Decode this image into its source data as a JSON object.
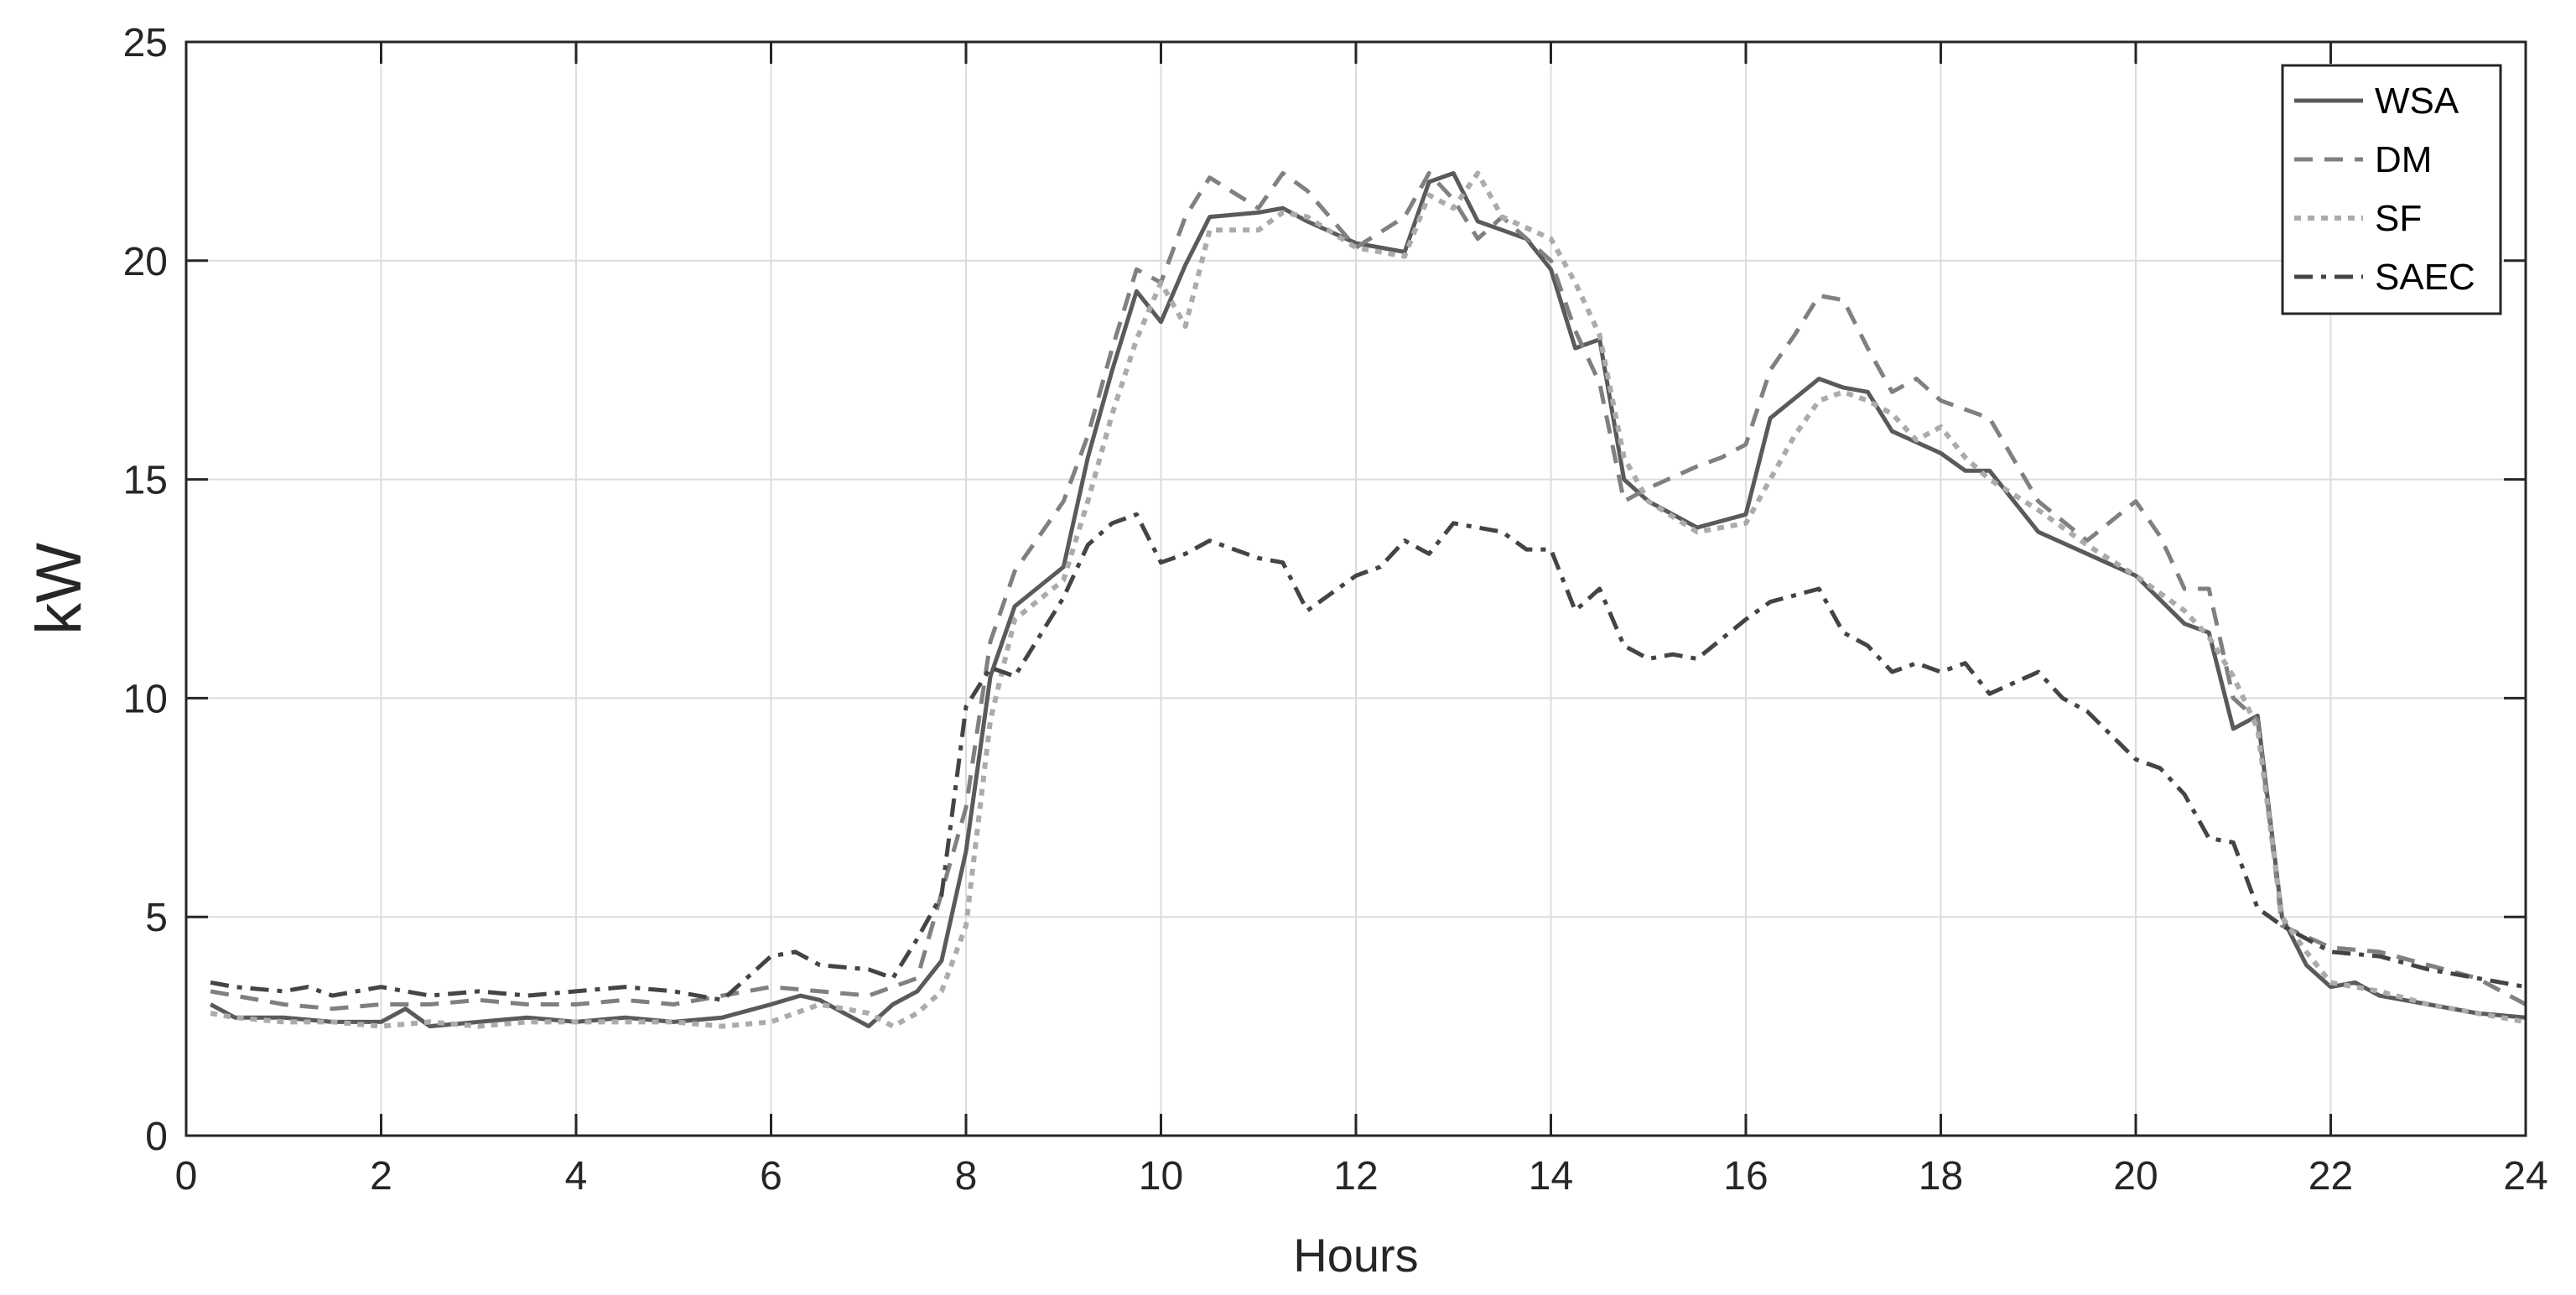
{
  "chart_data": {
    "type": "line",
    "title": "",
    "xlabel": "Hours",
    "ylabel": "kW",
    "xlim": [
      0,
      24
    ],
    "ylim": [
      0,
      25
    ],
    "x_ticks": [
      "0",
      "2",
      "4",
      "6",
      "8",
      "10",
      "12",
      "14",
      "16",
      "18",
      "20",
      "22",
      "24"
    ],
    "y_ticks": [
      "0",
      "5",
      "10",
      "15",
      "20",
      "25"
    ],
    "grid": true,
    "legend_position": "top-right",
    "series": [
      {
        "name": "WSA",
        "color": "#5a5a5a",
        "dash": "solid",
        "points": [
          [
            0.25,
            3.0
          ],
          [
            0.5,
            2.7
          ],
          [
            1,
            2.7
          ],
          [
            1.5,
            2.6
          ],
          [
            2,
            2.6
          ],
          [
            2.25,
            2.9
          ],
          [
            2.5,
            2.5
          ],
          [
            3,
            2.6
          ],
          [
            3.5,
            2.7
          ],
          [
            4,
            2.6
          ],
          [
            4.5,
            2.7
          ],
          [
            5,
            2.6
          ],
          [
            5.5,
            2.7
          ],
          [
            6,
            3.0
          ],
          [
            6.3,
            3.2
          ],
          [
            6.5,
            3.1
          ],
          [
            7,
            2.5
          ],
          [
            7.25,
            3.0
          ],
          [
            7.5,
            3.3
          ],
          [
            7.75,
            4.0
          ],
          [
            8,
            6.5
          ],
          [
            8.25,
            10.5
          ],
          [
            8.5,
            12.1
          ],
          [
            9,
            13.0
          ],
          [
            9.25,
            15.5
          ],
          [
            9.5,
            17.5
          ],
          [
            9.75,
            19.3
          ],
          [
            10,
            18.6
          ],
          [
            10.25,
            19.9
          ],
          [
            10.5,
            21.0
          ],
          [
            11,
            21.1
          ],
          [
            11.25,
            21.2
          ],
          [
            11.5,
            20.9
          ],
          [
            12,
            20.4
          ],
          [
            12.5,
            20.2
          ],
          [
            12.75,
            21.8
          ],
          [
            13,
            22.0
          ],
          [
            13.25,
            20.9
          ],
          [
            13.75,
            20.5
          ],
          [
            14,
            19.8
          ],
          [
            14.25,
            18.0
          ],
          [
            14.5,
            18.2
          ],
          [
            14.75,
            15.0
          ],
          [
            15,
            14.5
          ],
          [
            15.5,
            13.9
          ],
          [
            16,
            14.2
          ],
          [
            16.25,
            16.4
          ],
          [
            16.75,
            17.3
          ],
          [
            17,
            17.1
          ],
          [
            17.25,
            17.0
          ],
          [
            17.5,
            16.1
          ],
          [
            18,
            15.6
          ],
          [
            18.25,
            15.2
          ],
          [
            18.5,
            15.2
          ],
          [
            19,
            13.8
          ],
          [
            19.5,
            13.3
          ],
          [
            20,
            12.8
          ],
          [
            20.5,
            11.7
          ],
          [
            20.75,
            11.5
          ],
          [
            21,
            9.3
          ],
          [
            21.25,
            9.6
          ],
          [
            21.5,
            5.0
          ],
          [
            21.75,
            3.9
          ],
          [
            22,
            3.4
          ],
          [
            22.25,
            3.5
          ],
          [
            22.5,
            3.2
          ],
          [
            23,
            3.0
          ],
          [
            23.5,
            2.8
          ],
          [
            24,
            2.7
          ]
        ]
      },
      {
        "name": "DM",
        "color": "#808080",
        "dash": "dashed",
        "points": [
          [
            0.25,
            3.3
          ],
          [
            0.5,
            3.2
          ],
          [
            1,
            3.0
          ],
          [
            1.5,
            2.9
          ],
          [
            2,
            3.0
          ],
          [
            2.5,
            3.0
          ],
          [
            3,
            3.1
          ],
          [
            3.5,
            3.0
          ],
          [
            4,
            3.0
          ],
          [
            4.5,
            3.1
          ],
          [
            5,
            3.0
          ],
          [
            5.5,
            3.2
          ],
          [
            6,
            3.4
          ],
          [
            6.5,
            3.3
          ],
          [
            7,
            3.2
          ],
          [
            7.5,
            3.6
          ],
          [
            8,
            7.5
          ],
          [
            8.25,
            11.3
          ],
          [
            8.5,
            12.9
          ],
          [
            9,
            14.5
          ],
          [
            9.25,
            16.0
          ],
          [
            9.5,
            18.0
          ],
          [
            9.75,
            19.8
          ],
          [
            10,
            19.5
          ],
          [
            10.25,
            21.0
          ],
          [
            10.5,
            21.9
          ],
          [
            11,
            21.2
          ],
          [
            11.25,
            22.0
          ],
          [
            11.5,
            21.6
          ],
          [
            12,
            20.3
          ],
          [
            12.5,
            21.0
          ],
          [
            12.75,
            22.0
          ],
          [
            13,
            21.4
          ],
          [
            13.25,
            20.5
          ],
          [
            13.5,
            21.0
          ],
          [
            14,
            20.0
          ],
          [
            14.25,
            18.4
          ],
          [
            14.5,
            17.2
          ],
          [
            14.75,
            14.5
          ],
          [
            15,
            14.8
          ],
          [
            15.5,
            15.3
          ],
          [
            15.75,
            15.5
          ],
          [
            16,
            15.8
          ],
          [
            16.25,
            17.5
          ],
          [
            16.5,
            18.3
          ],
          [
            16.75,
            19.2
          ],
          [
            17,
            19.1
          ],
          [
            17.25,
            18.0
          ],
          [
            17.5,
            17.0
          ],
          [
            17.75,
            17.3
          ],
          [
            18,
            16.8
          ],
          [
            18.5,
            16.4
          ],
          [
            19,
            14.5
          ],
          [
            19.5,
            13.6
          ],
          [
            20,
            14.5
          ],
          [
            20.25,
            13.7
          ],
          [
            20.5,
            12.5
          ],
          [
            20.75,
            12.5
          ],
          [
            21,
            10.0
          ],
          [
            21.25,
            9.5
          ],
          [
            21.5,
            4.8
          ],
          [
            22,
            4.3
          ],
          [
            22.5,
            4.2
          ],
          [
            23,
            3.9
          ],
          [
            23.5,
            3.6
          ],
          [
            24,
            3.0
          ]
        ]
      },
      {
        "name": "SF",
        "color": "#ababab",
        "dash": "dotted",
        "points": [
          [
            0.25,
            2.8
          ],
          [
            0.5,
            2.7
          ],
          [
            1,
            2.6
          ],
          [
            1.5,
            2.6
          ],
          [
            2,
            2.5
          ],
          [
            2.5,
            2.6
          ],
          [
            3,
            2.5
          ],
          [
            3.5,
            2.6
          ],
          [
            4,
            2.6
          ],
          [
            4.5,
            2.6
          ],
          [
            5,
            2.6
          ],
          [
            5.5,
            2.5
          ],
          [
            6,
            2.6
          ],
          [
            6.5,
            3.0
          ],
          [
            7,
            2.8
          ],
          [
            7.25,
            2.5
          ],
          [
            7.5,
            2.8
          ],
          [
            7.75,
            3.3
          ],
          [
            8,
            4.8
          ],
          [
            8.25,
            9.5
          ],
          [
            8.5,
            11.8
          ],
          [
            9,
            12.7
          ],
          [
            9.25,
            14.5
          ],
          [
            9.5,
            16.5
          ],
          [
            9.75,
            18.2
          ],
          [
            10,
            19.5
          ],
          [
            10.25,
            18.5
          ],
          [
            10.5,
            20.7
          ],
          [
            11,
            20.7
          ],
          [
            11.25,
            21.1
          ],
          [
            11.5,
            21.0
          ],
          [
            12,
            20.3
          ],
          [
            12.5,
            20.1
          ],
          [
            12.75,
            21.5
          ],
          [
            13,
            21.2
          ],
          [
            13.25,
            22.0
          ],
          [
            13.5,
            21.0
          ],
          [
            14,
            20.5
          ],
          [
            14.25,
            19.5
          ],
          [
            14.5,
            18.3
          ],
          [
            14.75,
            15.5
          ],
          [
            15,
            14.5
          ],
          [
            15.5,
            13.8
          ],
          [
            16,
            14.0
          ],
          [
            16.25,
            15.0
          ],
          [
            16.5,
            16.0
          ],
          [
            16.75,
            16.8
          ],
          [
            17,
            17.0
          ],
          [
            17.25,
            16.8
          ],
          [
            17.5,
            16.5
          ],
          [
            17.75,
            15.9
          ],
          [
            18,
            16.2
          ],
          [
            18.25,
            15.5
          ],
          [
            18.5,
            15.0
          ],
          [
            19,
            14.3
          ],
          [
            19.5,
            13.5
          ],
          [
            20,
            12.8
          ],
          [
            20.5,
            12.0
          ],
          [
            20.75,
            11.4
          ],
          [
            21,
            10.5
          ],
          [
            21.25,
            9.3
          ],
          [
            21.5,
            5.0
          ],
          [
            21.75,
            4.2
          ],
          [
            22,
            3.5
          ],
          [
            22.5,
            3.3
          ],
          [
            23,
            3.0
          ],
          [
            23.5,
            2.8
          ],
          [
            24,
            2.6
          ]
        ]
      },
      {
        "name": "SAEC",
        "color": "#444444",
        "dash": "dashdot",
        "points": [
          [
            0.25,
            3.5
          ],
          [
            0.5,
            3.4
          ],
          [
            1,
            3.3
          ],
          [
            1.25,
            3.4
          ],
          [
            1.5,
            3.2
          ],
          [
            2,
            3.4
          ],
          [
            2.5,
            3.2
          ],
          [
            3,
            3.3
          ],
          [
            3.5,
            3.2
          ],
          [
            4,
            3.3
          ],
          [
            4.5,
            3.4
          ],
          [
            5,
            3.3
          ],
          [
            5.5,
            3.1
          ],
          [
            6,
            4.1
          ],
          [
            6.25,
            4.2
          ],
          [
            6.5,
            3.9
          ],
          [
            7,
            3.8
          ],
          [
            7.25,
            3.6
          ],
          [
            7.5,
            4.5
          ],
          [
            7.75,
            5.5
          ],
          [
            8,
            9.8
          ],
          [
            8.25,
            10.7
          ],
          [
            8.5,
            10.5
          ],
          [
            9,
            12.3
          ],
          [
            9.25,
            13.5
          ],
          [
            9.5,
            14.0
          ],
          [
            9.75,
            14.2
          ],
          [
            10,
            13.1
          ],
          [
            10.25,
            13.3
          ],
          [
            10.5,
            13.6
          ],
          [
            11,
            13.2
          ],
          [
            11.25,
            13.1
          ],
          [
            11.5,
            12.0
          ],
          [
            12,
            12.8
          ],
          [
            12.25,
            13.0
          ],
          [
            12.5,
            13.6
          ],
          [
            12.75,
            13.3
          ],
          [
            13,
            14.0
          ],
          [
            13.5,
            13.8
          ],
          [
            13.75,
            13.4
          ],
          [
            14,
            13.4
          ],
          [
            14.25,
            12.0
          ],
          [
            14.5,
            12.5
          ],
          [
            14.75,
            11.2
          ],
          [
            15,
            10.9
          ],
          [
            15.25,
            11.0
          ],
          [
            15.5,
            10.9
          ],
          [
            16,
            11.8
          ],
          [
            16.25,
            12.2
          ],
          [
            16.75,
            12.5
          ],
          [
            17,
            11.5
          ],
          [
            17.25,
            11.2
          ],
          [
            17.5,
            10.6
          ],
          [
            17.75,
            10.8
          ],
          [
            18,
            10.6
          ],
          [
            18.25,
            10.8
          ],
          [
            18.5,
            10.1
          ],
          [
            19,
            10.6
          ],
          [
            19.25,
            10.0
          ],
          [
            19.5,
            9.7
          ],
          [
            20,
            8.6
          ],
          [
            20.25,
            8.4
          ],
          [
            20.5,
            7.8
          ],
          [
            20.75,
            6.8
          ],
          [
            21,
            6.7
          ],
          [
            21.25,
            5.2
          ],
          [
            21.5,
            4.8
          ],
          [
            22,
            4.2
          ],
          [
            22.5,
            4.1
          ],
          [
            23,
            3.8
          ],
          [
            23.5,
            3.6
          ],
          [
            24,
            3.4
          ]
        ]
      }
    ]
  }
}
